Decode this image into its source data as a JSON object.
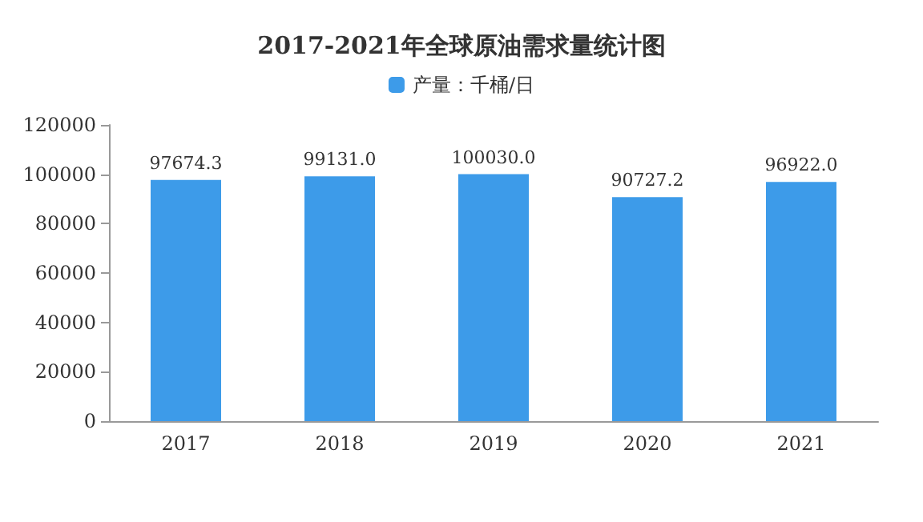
{
  "chart_data": {
    "type": "bar",
    "title": "2017-2021年全球原油需求量统计图",
    "categories": [
      "2017",
      "2018",
      "2019",
      "2020",
      "2021"
    ],
    "series": [
      {
        "name": "产量：千桶/日",
        "color": "#3d9be9",
        "values": [
          97674.3,
          99131.0,
          100030.0,
          90727.2,
          96922.0
        ],
        "value_labels": [
          "97674.3",
          "99131.0",
          "100030.0",
          "90727.2",
          "96922.0"
        ]
      }
    ],
    "ylim": [
      0,
      120000
    ],
    "yticks": [
      0,
      20000,
      40000,
      60000,
      80000,
      100000,
      120000
    ],
    "grid": false,
    "legend": "top"
  }
}
